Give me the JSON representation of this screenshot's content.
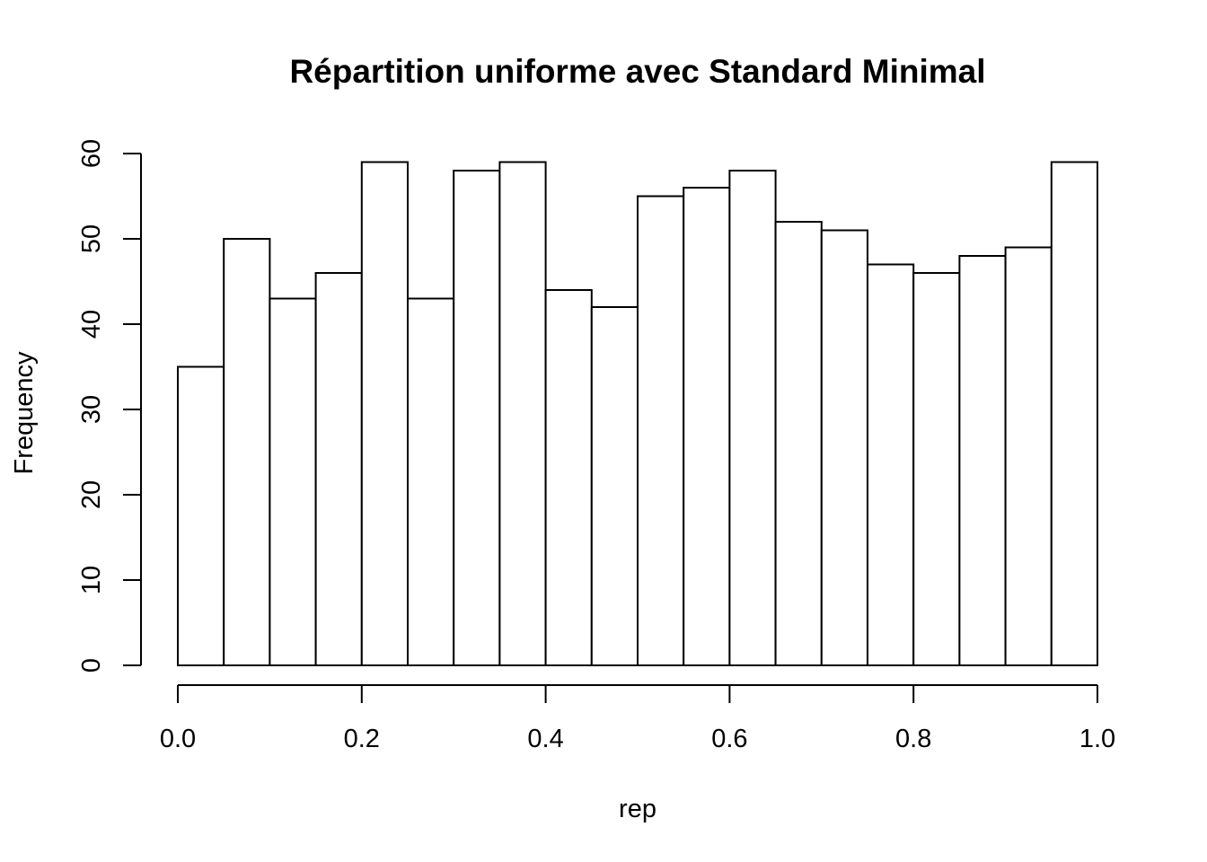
{
  "chart_data": {
    "type": "histogram",
    "title": "Répartition uniforme avec Standard Minimal",
    "xlabel": "rep",
    "ylabel": "Frequency",
    "bin_edges": [
      0.0,
      0.05,
      0.1,
      0.15,
      0.2,
      0.25,
      0.3,
      0.35,
      0.4,
      0.45,
      0.5,
      0.55,
      0.6,
      0.65,
      0.7,
      0.75,
      0.8,
      0.85,
      0.9,
      0.95,
      1.0
    ],
    "values": [
      35,
      50,
      43,
      46,
      59,
      43,
      58,
      59,
      44,
      42,
      55,
      56,
      58,
      52,
      51,
      47,
      46,
      48,
      49,
      59
    ],
    "xlim": [
      0.0,
      1.0
    ],
    "ylim": [
      0,
      60
    ],
    "x_ticks": [
      "0.0",
      "0.2",
      "0.4",
      "0.6",
      "0.8",
      "1.0"
    ],
    "y_ticks": [
      "0",
      "10",
      "20",
      "30",
      "40",
      "50",
      "60"
    ],
    "grid": false,
    "bar_fill": "#ffffff",
    "bar_stroke": "#000000"
  }
}
